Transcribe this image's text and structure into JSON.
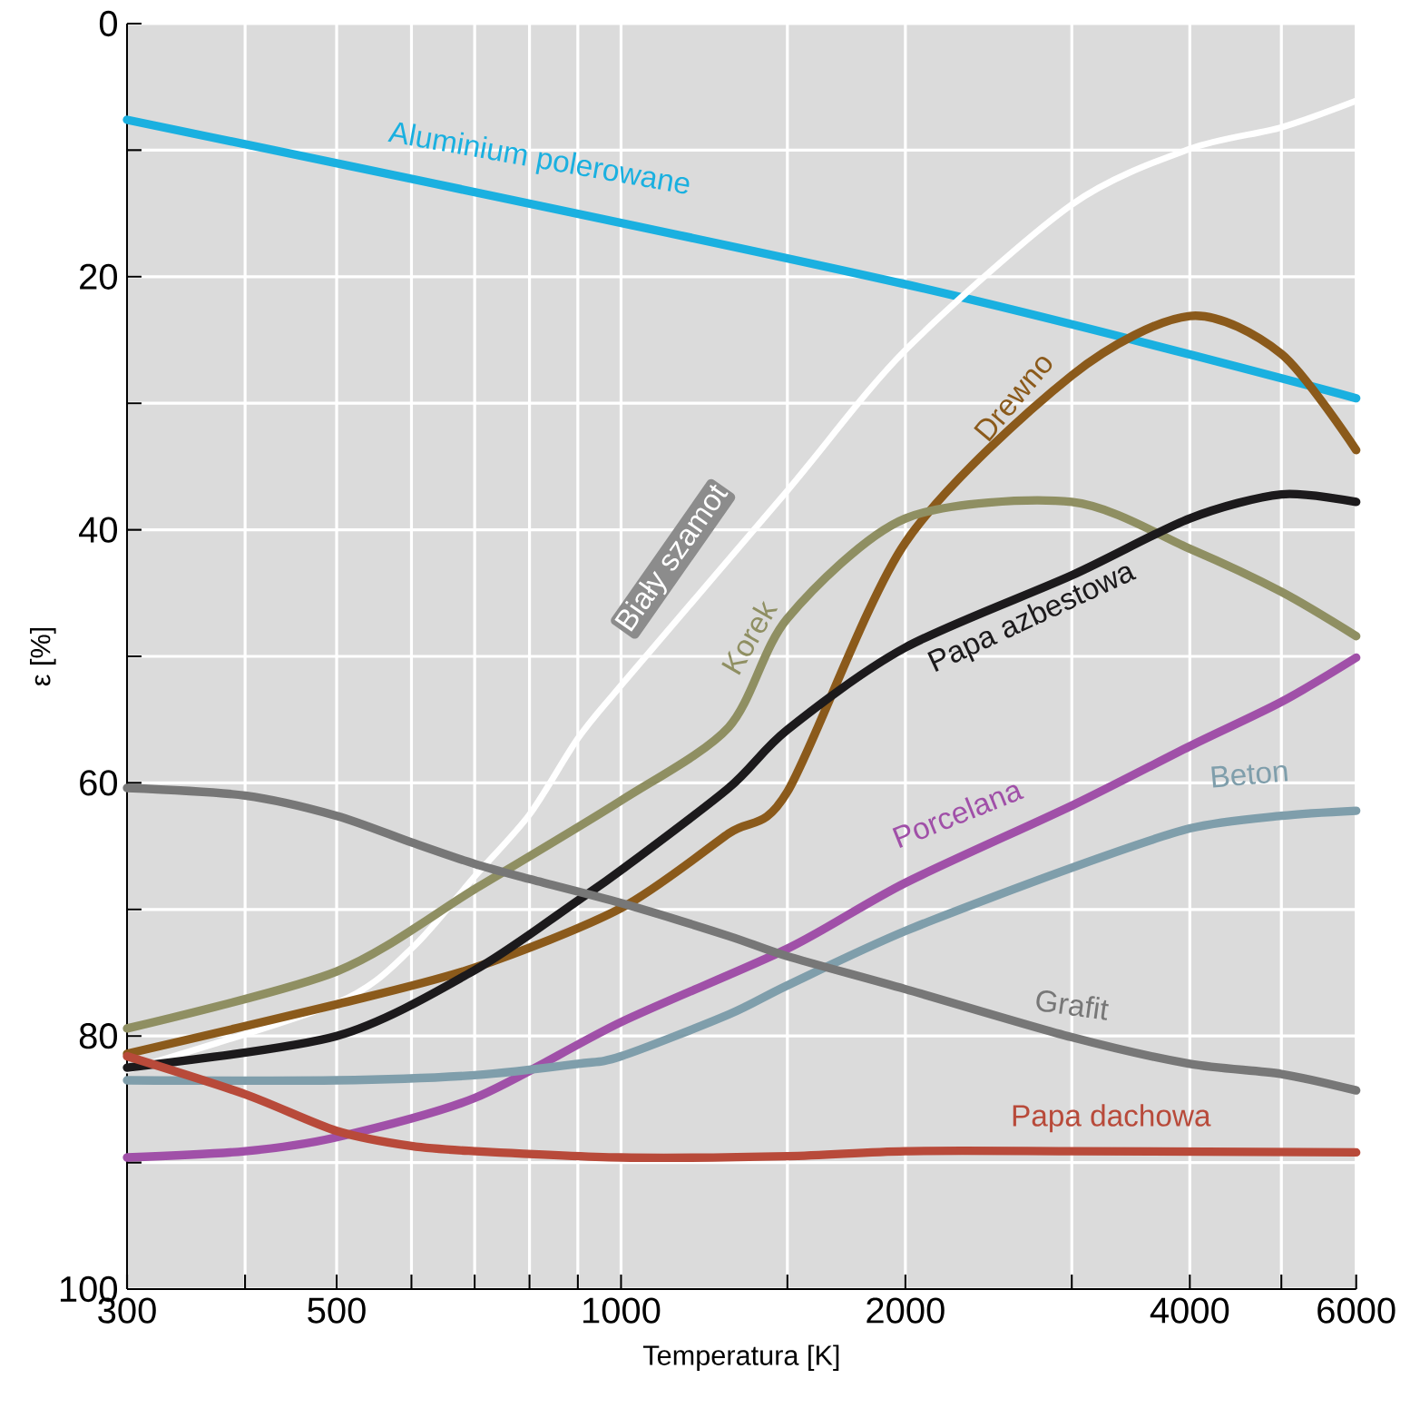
{
  "chart_data": {
    "type": "line",
    "xlabel": "Temperatura [K]",
    "ylabel": "ε [%]",
    "log": "x",
    "grid": true,
    "xlim": [
      300,
      6000
    ],
    "ylim": [
      100,
      0
    ],
    "xticks": [
      300,
      {
        "value": 400,
        "label": null
      },
      500,
      {
        "value": 600,
        "label": null
      },
      {
        "value": 700,
        "label": null
      },
      {
        "value": 800,
        "label": null
      },
      {
        "value": 900,
        "label": null
      },
      1000,
      {
        "value": 1500,
        "label": null
      },
      2000,
      {
        "value": 3000,
        "label": null
      },
      4000,
      {
        "value": 5000,
        "label": null
      },
      6000
    ],
    "yticks": [
      0,
      {
        "value": 10,
        "label": null
      },
      20,
      {
        "value": 30,
        "label": null
      },
      40,
      {
        "value": 50,
        "label": null
      },
      60,
      {
        "value": 70,
        "label": null
      },
      80,
      {
        "value": 90,
        "label": null
      },
      100
    ],
    "series": [
      {
        "name": "Aluminium polerowane",
        "color": "#1ab0e0",
        "x": [
          300,
          2000,
          6000
        ],
        "values": [
          7.6,
          20.6,
          29.6
        ]
      },
      {
        "name": "Biały szamot",
        "color": "#ffffff",
        "x": [
          300,
          500,
          600,
          700,
          800,
          900,
          1000,
          1500,
          2000,
          3000,
          4000,
          5000,
          6000
        ],
        "values": [
          82.7,
          77.4,
          73.1,
          67.4,
          62.5,
          56.5,
          52.3,
          36.9,
          25.8,
          14.3,
          9.9,
          8.2,
          6.1
        ]
      },
      {
        "name": "Drewno",
        "color": "#8b5a1b",
        "x": [
          300,
          500,
          700,
          1000,
          1300,
          1500,
          2000,
          3000,
          4000,
          5000,
          6000
        ],
        "values": [
          81.4,
          77.5,
          74.6,
          69.9,
          64,
          60.7,
          41,
          27.8,
          23.1,
          26.1,
          33.7
        ]
      },
      {
        "name": "Korek",
        "color": "#8f8f62",
        "x": [
          300,
          500,
          700,
          1000,
          1300,
          1500,
          2000,
          3000,
          4000,
          5000,
          6000
        ],
        "values": [
          79.4,
          74.9,
          68.4,
          61.4,
          55.6,
          47,
          39.1,
          37.8,
          41.5,
          44.9,
          48.4
        ]
      },
      {
        "name": "Papa azbestowa",
        "color": "#1c1a1c",
        "x": [
          300,
          500,
          700,
          900,
          1000,
          1300,
          1500,
          2000,
          3000,
          4000,
          5000,
          6000
        ],
        "values": [
          82.5,
          80,
          74.8,
          69.3,
          66.9,
          60.4,
          55.8,
          49.3,
          43.6,
          39.1,
          37.2,
          37.8
        ]
      },
      {
        "name": "Porcelana",
        "color": "#a050a8",
        "x": [
          300,
          400,
          500,
          700,
          1000,
          1500,
          2000,
          3000,
          4000,
          5000,
          6000
        ],
        "values": [
          89.6,
          89.1,
          88,
          84.9,
          78.9,
          73.1,
          67.9,
          61.8,
          57.1,
          53.6,
          50.1
        ]
      },
      {
        "name": "Beton",
        "color": "#7f9eab",
        "x": [
          300,
          500,
          700,
          900,
          1000,
          1300,
          1500,
          2000,
          3000,
          4000,
          5000,
          6000
        ],
        "values": [
          83.5,
          83.5,
          83.1,
          82.2,
          81.6,
          78.3,
          76,
          71.7,
          66.7,
          63.6,
          62.6,
          62.2
        ]
      },
      {
        "name": "Grafit",
        "color": "#777777",
        "x": [
          300,
          400,
          500,
          600,
          700,
          800,
          1000,
          1300,
          1500,
          2000,
          3000,
          4000,
          5000,
          6000
        ],
        "values": [
          60.4,
          61,
          62.6,
          64.7,
          66.4,
          67.6,
          69.5,
          72.1,
          73.7,
          76.3,
          80.1,
          82.2,
          83,
          84.3
        ]
      },
      {
        "name": "Papa dachowa",
        "color": "#b84a3a",
        "x": [
          300,
          400,
          500,
          600,
          700,
          1000,
          1500,
          2000,
          3000,
          6000
        ],
        "values": [
          81.6,
          84.6,
          87.5,
          88.7,
          89.1,
          89.6,
          89.5,
          89.1,
          89.1,
          89.2
        ]
      }
    ]
  }
}
